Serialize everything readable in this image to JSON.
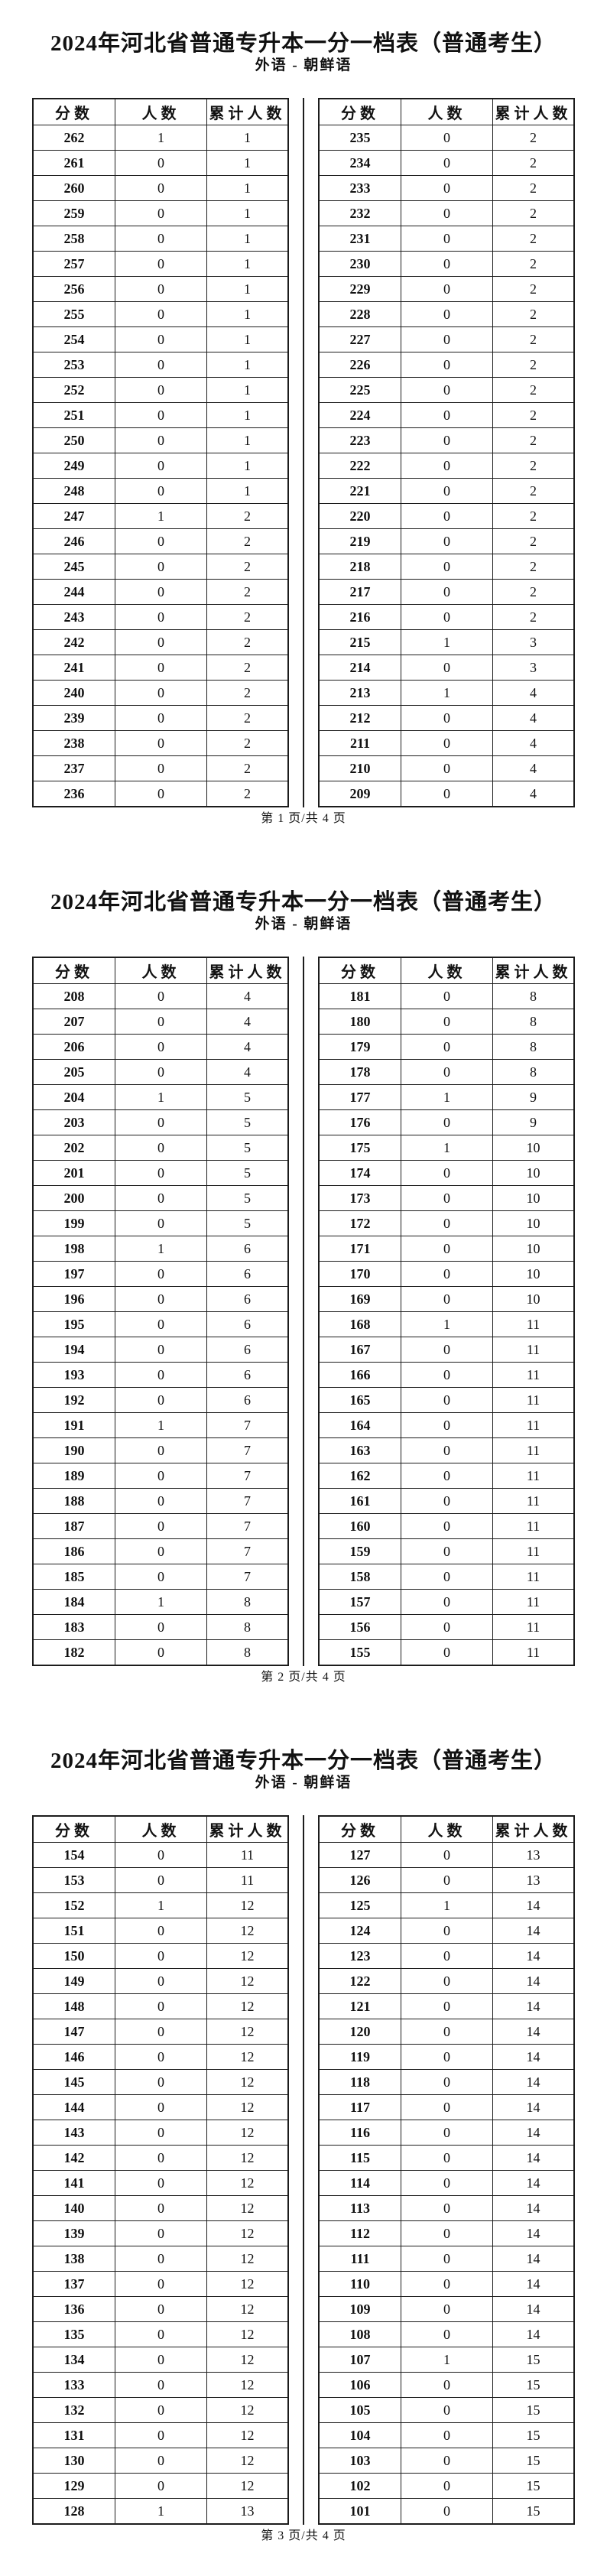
{
  "title": "2024年河北省普通专升本一分一档表（普通考生）",
  "subtitle": "外语 - 朝鲜语",
  "table_columns": [
    "分数",
    "人数",
    "累计人数"
  ],
  "colors": {
    "text": "#111111",
    "border": "#1c1c1c",
    "background": "#ffffff"
  },
  "pages": [
    {
      "footer": "第 1 页/共 4 页",
      "left_table": {
        "rows": [
          [
            262,
            1,
            1
          ],
          [
            261,
            0,
            1
          ],
          [
            260,
            0,
            1
          ],
          [
            259,
            0,
            1
          ],
          [
            258,
            0,
            1
          ],
          [
            257,
            0,
            1
          ],
          [
            256,
            0,
            1
          ],
          [
            255,
            0,
            1
          ],
          [
            254,
            0,
            1
          ],
          [
            253,
            0,
            1
          ],
          [
            252,
            0,
            1
          ],
          [
            251,
            0,
            1
          ],
          [
            250,
            0,
            1
          ],
          [
            249,
            0,
            1
          ],
          [
            248,
            0,
            1
          ],
          [
            247,
            1,
            2
          ],
          [
            246,
            0,
            2
          ],
          [
            245,
            0,
            2
          ],
          [
            244,
            0,
            2
          ],
          [
            243,
            0,
            2
          ],
          [
            242,
            0,
            2
          ],
          [
            241,
            0,
            2
          ],
          [
            240,
            0,
            2
          ],
          [
            239,
            0,
            2
          ],
          [
            238,
            0,
            2
          ],
          [
            237,
            0,
            2
          ],
          [
            236,
            0,
            2
          ]
        ]
      },
      "right_table": {
        "rows": [
          [
            235,
            0,
            2
          ],
          [
            234,
            0,
            2
          ],
          [
            233,
            0,
            2
          ],
          [
            232,
            0,
            2
          ],
          [
            231,
            0,
            2
          ],
          [
            230,
            0,
            2
          ],
          [
            229,
            0,
            2
          ],
          [
            228,
            0,
            2
          ],
          [
            227,
            0,
            2
          ],
          [
            226,
            0,
            2
          ],
          [
            225,
            0,
            2
          ],
          [
            224,
            0,
            2
          ],
          [
            223,
            0,
            2
          ],
          [
            222,
            0,
            2
          ],
          [
            221,
            0,
            2
          ],
          [
            220,
            0,
            2
          ],
          [
            219,
            0,
            2
          ],
          [
            218,
            0,
            2
          ],
          [
            217,
            0,
            2
          ],
          [
            216,
            0,
            2
          ],
          [
            215,
            1,
            3
          ],
          [
            214,
            0,
            3
          ],
          [
            213,
            1,
            4
          ],
          [
            212,
            0,
            4
          ],
          [
            211,
            0,
            4
          ],
          [
            210,
            0,
            4
          ],
          [
            209,
            0,
            4
          ]
        ]
      }
    },
    {
      "footer": "第 2 页/共 4 页",
      "left_table": {
        "rows": [
          [
            208,
            0,
            4
          ],
          [
            207,
            0,
            4
          ],
          [
            206,
            0,
            4
          ],
          [
            205,
            0,
            4
          ],
          [
            204,
            1,
            5
          ],
          [
            203,
            0,
            5
          ],
          [
            202,
            0,
            5
          ],
          [
            201,
            0,
            5
          ],
          [
            200,
            0,
            5
          ],
          [
            199,
            0,
            5
          ],
          [
            198,
            1,
            6
          ],
          [
            197,
            0,
            6
          ],
          [
            196,
            0,
            6
          ],
          [
            195,
            0,
            6
          ],
          [
            194,
            0,
            6
          ],
          [
            193,
            0,
            6
          ],
          [
            192,
            0,
            6
          ],
          [
            191,
            1,
            7
          ],
          [
            190,
            0,
            7
          ],
          [
            189,
            0,
            7
          ],
          [
            188,
            0,
            7
          ],
          [
            187,
            0,
            7
          ],
          [
            186,
            0,
            7
          ],
          [
            185,
            0,
            7
          ],
          [
            184,
            1,
            8
          ],
          [
            183,
            0,
            8
          ],
          [
            182,
            0,
            8
          ]
        ]
      },
      "right_table": {
        "rows": [
          [
            181,
            0,
            8
          ],
          [
            180,
            0,
            8
          ],
          [
            179,
            0,
            8
          ],
          [
            178,
            0,
            8
          ],
          [
            177,
            1,
            9
          ],
          [
            176,
            0,
            9
          ],
          [
            175,
            1,
            10
          ],
          [
            174,
            0,
            10
          ],
          [
            173,
            0,
            10
          ],
          [
            172,
            0,
            10
          ],
          [
            171,
            0,
            10
          ],
          [
            170,
            0,
            10
          ],
          [
            169,
            0,
            10
          ],
          [
            168,
            1,
            11
          ],
          [
            167,
            0,
            11
          ],
          [
            166,
            0,
            11
          ],
          [
            165,
            0,
            11
          ],
          [
            164,
            0,
            11
          ],
          [
            163,
            0,
            11
          ],
          [
            162,
            0,
            11
          ],
          [
            161,
            0,
            11
          ],
          [
            160,
            0,
            11
          ],
          [
            159,
            0,
            11
          ],
          [
            158,
            0,
            11
          ],
          [
            157,
            0,
            11
          ],
          [
            156,
            0,
            11
          ],
          [
            155,
            0,
            11
          ]
        ]
      }
    },
    {
      "footer": "第 3 页/共 4 页",
      "left_table": {
        "rows": [
          [
            154,
            0,
            11
          ],
          [
            153,
            0,
            11
          ],
          [
            152,
            1,
            12
          ],
          [
            151,
            0,
            12
          ],
          [
            150,
            0,
            12
          ],
          [
            149,
            0,
            12
          ],
          [
            148,
            0,
            12
          ],
          [
            147,
            0,
            12
          ],
          [
            146,
            0,
            12
          ],
          [
            145,
            0,
            12
          ],
          [
            144,
            0,
            12
          ],
          [
            143,
            0,
            12
          ],
          [
            142,
            0,
            12
          ],
          [
            141,
            0,
            12
          ],
          [
            140,
            0,
            12
          ],
          [
            139,
            0,
            12
          ],
          [
            138,
            0,
            12
          ],
          [
            137,
            0,
            12
          ],
          [
            136,
            0,
            12
          ],
          [
            135,
            0,
            12
          ],
          [
            134,
            0,
            12
          ],
          [
            133,
            0,
            12
          ],
          [
            132,
            0,
            12
          ],
          [
            131,
            0,
            12
          ],
          [
            130,
            0,
            12
          ],
          [
            129,
            0,
            12
          ],
          [
            128,
            1,
            13
          ]
        ]
      },
      "right_table": {
        "rows": [
          [
            127,
            0,
            13
          ],
          [
            126,
            0,
            13
          ],
          [
            125,
            1,
            14
          ],
          [
            124,
            0,
            14
          ],
          [
            123,
            0,
            14
          ],
          [
            122,
            0,
            14
          ],
          [
            121,
            0,
            14
          ],
          [
            120,
            0,
            14
          ],
          [
            119,
            0,
            14
          ],
          [
            118,
            0,
            14
          ],
          [
            117,
            0,
            14
          ],
          [
            116,
            0,
            14
          ],
          [
            115,
            0,
            14
          ],
          [
            114,
            0,
            14
          ],
          [
            113,
            0,
            14
          ],
          [
            112,
            0,
            14
          ],
          [
            111,
            0,
            14
          ],
          [
            110,
            0,
            14
          ],
          [
            109,
            0,
            14
          ],
          [
            108,
            0,
            14
          ],
          [
            107,
            1,
            15
          ],
          [
            106,
            0,
            15
          ],
          [
            105,
            0,
            15
          ],
          [
            104,
            0,
            15
          ],
          [
            103,
            0,
            15
          ],
          [
            102,
            0,
            15
          ],
          [
            101,
            0,
            15
          ]
        ]
      }
    }
  ]
}
